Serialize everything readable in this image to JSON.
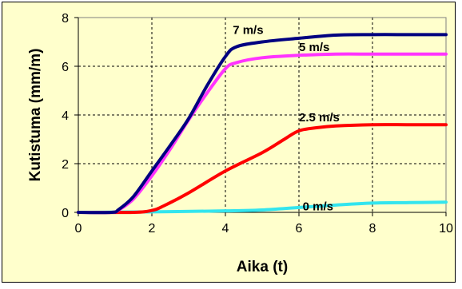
{
  "chart_data": {
    "type": "line",
    "title": "",
    "xlabel": "Aika (t)",
    "ylabel": "Kutistuma (mm/m)",
    "xlim": [
      0,
      10
    ],
    "ylim": [
      0,
      8
    ],
    "xticks": [
      0,
      2,
      4,
      6,
      8,
      10
    ],
    "yticks": [
      0,
      2,
      4,
      6,
      8
    ],
    "grid": true,
    "legend": "none",
    "background": "#ffffcc",
    "series": [
      {
        "name": "0 m/s",
        "color": "#33e5ee",
        "x": [
          0,
          2,
          4,
          5,
          6,
          7,
          8,
          9,
          10
        ],
        "y": [
          0,
          0.02,
          0.06,
          0.1,
          0.2,
          0.3,
          0.38,
          0.4,
          0.42
        ]
      },
      {
        "name": "2.5 m/s",
        "color": "#ff0000",
        "x": [
          0,
          1.5,
          2,
          2.3,
          3,
          4,
          5,
          5.6,
          6,
          6.5,
          7,
          8,
          9,
          10
        ],
        "y": [
          0,
          0,
          0.08,
          0.25,
          0.8,
          1.7,
          2.45,
          3.0,
          3.35,
          3.48,
          3.55,
          3.6,
          3.6,
          3.6
        ]
      },
      {
        "name": "5 m/s",
        "color": "#ff33ff",
        "x": [
          0,
          0.9,
          1.1,
          1.5,
          2,
          2.5,
          3,
          3.5,
          4,
          4.3,
          5,
          6,
          7,
          8,
          9,
          10
        ],
        "y": [
          0,
          0,
          0.1,
          0.55,
          1.5,
          2.6,
          3.8,
          4.9,
          5.9,
          6.15,
          6.35,
          6.45,
          6.5,
          6.5,
          6.5,
          6.5
        ]
      },
      {
        "name": "7 m/s",
        "color": "#000080",
        "x": [
          0,
          0.9,
          1.1,
          1.5,
          2,
          2.5,
          3,
          3.5,
          4,
          4.3,
          5,
          6,
          7,
          8,
          9,
          10
        ],
        "y": [
          0,
          0,
          0.12,
          0.65,
          1.7,
          2.75,
          3.85,
          5.2,
          6.4,
          6.8,
          7.0,
          7.15,
          7.28,
          7.3,
          7.3,
          7.3
        ]
      }
    ],
    "annotations": [
      {
        "text": "7 m/s",
        "x": 4.2,
        "y": 7.2
      },
      {
        "text": "5 m/s",
        "x": 6.0,
        "y": 6.5
      },
      {
        "text": "2.5 m/s",
        "x": 6.0,
        "y": 3.6
      },
      {
        "text": "0 m/s",
        "x": 6.1,
        "y": -0.05
      }
    ]
  }
}
